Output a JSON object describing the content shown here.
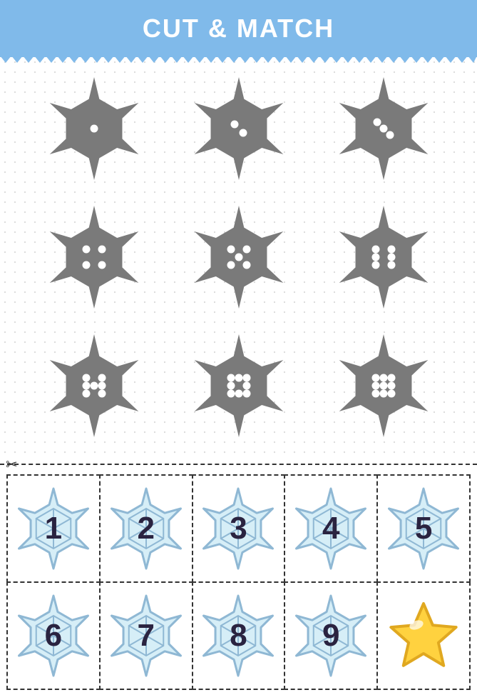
{
  "header": {
    "title": "CUT & MATCH",
    "bg_color": "#80baea",
    "text_color": "#ffffff"
  },
  "snowflake_grid": {
    "shape_color": "#7a7a7a",
    "dot_color": "#ffffff",
    "background": "#ffffff",
    "items": [
      {
        "dots": 1
      },
      {
        "dots": 2
      },
      {
        "dots": 3
      },
      {
        "dots": 4
      },
      {
        "dots": 5
      },
      {
        "dots": 6
      },
      {
        "dots": 7
      },
      {
        "dots": 8
      },
      {
        "dots": 9
      }
    ]
  },
  "cut_line": {
    "dash_color": "#333333",
    "scissors_icon": "scissors"
  },
  "cards": {
    "snowflake_fill": "#d6eef7",
    "snowflake_stroke": "#8fb8d4",
    "number_color": "#2a2340",
    "items": [
      {
        "number": "1"
      },
      {
        "number": "2"
      },
      {
        "number": "3"
      },
      {
        "number": "4"
      },
      {
        "number": "5"
      },
      {
        "number": "6"
      },
      {
        "number": "7"
      },
      {
        "number": "8"
      },
      {
        "number": "9"
      }
    ],
    "star": {
      "fill": "#ffd23f",
      "stroke": "#e0a820"
    }
  }
}
